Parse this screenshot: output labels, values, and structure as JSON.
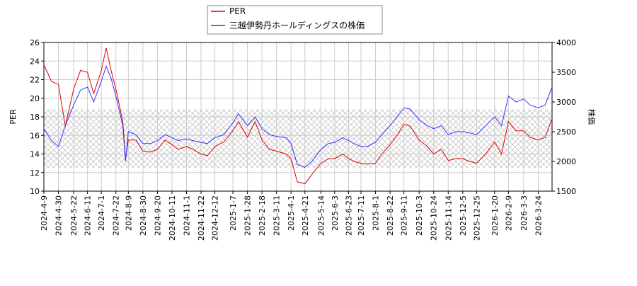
{
  "chart_data": {
    "type": "line",
    "x": [
      "2024-4-9",
      "2024-4-20",
      "2024-4-30",
      "2024-5-10",
      "2024-5-22",
      "2024-6-1",
      "2024-6-11",
      "2024-6-20",
      "2024-7-1",
      "2024-7-8",
      "2024-7-15",
      "2024-7-22",
      "2024-8-1",
      "2024-8-5",
      "2024-8-9",
      "2024-8-20",
      "2024-8-30",
      "2024-9-10",
      "2024-9-20",
      "2024-10-1",
      "2024-10-11",
      "2024-10-20",
      "2024-11-1",
      "2024-11-10",
      "2024-11-22",
      "2024-12-1",
      "2024-12-12",
      "2024-12-25",
      "2025-1-7",
      "2025-1-15",
      "2025-1-28",
      "2025-2-8",
      "2025-2-18",
      "2025-3-1",
      "2025-3-11",
      "2025-3-25",
      "2025-4-1",
      "2025-4-10",
      "2025-4-21",
      "2025-5-1",
      "2025-5-14",
      "2025-5-25",
      "2025-6-3",
      "2025-6-15",
      "2025-6-23",
      "2025-7-1",
      "2025-7-11",
      "2025-7-20",
      "2025-8-1",
      "2025-8-10",
      "2025-8-22",
      "2025-9-1",
      "2025-9-11",
      "2025-9-20",
      "2025-10-3",
      "2025-10-15",
      "2025-10-24",
      "2025-11-4",
      "2025-11-14",
      "2025-11-25",
      "2025-12-5",
      "2025-12-15",
      "2025-12-25",
      "2026-1-7",
      "2026-1-20",
      "2026-1-30",
      "2026-2-9",
      "2026-2-20",
      "2026-3-3",
      "2026-3-12",
      "2026-3-24",
      "2026-4-3",
      "2026-4-13"
    ],
    "series": [
      {
        "name": "PER",
        "color": "#dd0000",
        "values": [
          23.6,
          21.8,
          21.5,
          17.0,
          21.0,
          23.0,
          22.8,
          20.5,
          23.0,
          25.4,
          23.0,
          21.0,
          17.5,
          13.5,
          15.5,
          15.5,
          14.3,
          14.2,
          14.5,
          15.5,
          15.0,
          14.5,
          14.8,
          14.5,
          14.0,
          13.8,
          14.8,
          15.3,
          16.5,
          17.5,
          15.8,
          17.5,
          15.5,
          14.5,
          14.3,
          14.0,
          13.5,
          11.0,
          10.8,
          11.8,
          13.0,
          13.5,
          13.5,
          14.0,
          13.5,
          13.2,
          13.0,
          12.9,
          13.0,
          14.0,
          15.0,
          16.0,
          17.2,
          17.0,
          15.5,
          14.8,
          14.0,
          14.5,
          13.3,
          13.5,
          13.5,
          13.2,
          13.0,
          14.0,
          15.3,
          14.0,
          17.5,
          16.5,
          16.5,
          15.8,
          15.5,
          15.8,
          17.8
        ]
      },
      {
        "name": "三越伊勢丹ホールディングスの株価",
        "color": "#3333ff",
        "axis": "y2",
        "values": [
          2550,
          2350,
          2250,
          2600,
          2950,
          3200,
          3250,
          3000,
          3350,
          3600,
          3400,
          3100,
          2600,
          2000,
          2500,
          2450,
          2300,
          2300,
          2350,
          2450,
          2400,
          2350,
          2380,
          2350,
          2320,
          2300,
          2400,
          2450,
          2650,
          2800,
          2600,
          2750,
          2550,
          2450,
          2420,
          2400,
          2300,
          1950,
          1900,
          2000,
          2200,
          2300,
          2320,
          2400,
          2350,
          2300,
          2250,
          2250,
          2320,
          2450,
          2600,
          2750,
          2900,
          2880,
          2700,
          2600,
          2550,
          2600,
          2450,
          2500,
          2500,
          2480,
          2450,
          2600,
          2750,
          2600,
          3100,
          3000,
          3050,
          2950,
          2900,
          2950,
          3250
        ]
      }
    ],
    "y_label": "PER",
    "y2_label": "株価",
    "xlim": [
      "2024-4-9",
      "2026-4-13"
    ],
    "xticks": [
      "2024-4-9",
      "2024-4-30",
      "2024-5-22",
      "2024-6-11",
      "2024-7-1",
      "2024-7-22",
      "2024-8-9",
      "2024-8-30",
      "2024-9-20",
      "2024-10-11",
      "2024-11-1",
      "2024-11-22",
      "2024-12-12",
      "2025-1-7",
      "2025-1-28",
      "2025-2-18",
      "2025-3-11",
      "2025-4-1",
      "2025-4-21",
      "2025-5-14",
      "2025-6-3",
      "2025-6-23",
      "2025-7-11",
      "2025-8-1",
      "2025-8-22",
      "2025-9-11",
      "2025-10-3",
      "2025-10-24",
      "2025-11-14",
      "2025-12-5",
      "2025-12-25",
      "2026-1-20",
      "2026-2-9",
      "2026-3-3",
      "2026-3-24"
    ],
    "ylim": [
      10,
      26
    ],
    "yticks": [
      10,
      12,
      14,
      16,
      18,
      20,
      22,
      24,
      26
    ],
    "y2lim": [
      1500,
      4000
    ],
    "y2ticks": [
      1500,
      2000,
      2500,
      3000,
      3500,
      4000
    ],
    "shaded_band": [
      12.5,
      18.8
    ],
    "grid": true,
    "legend": "top"
  }
}
